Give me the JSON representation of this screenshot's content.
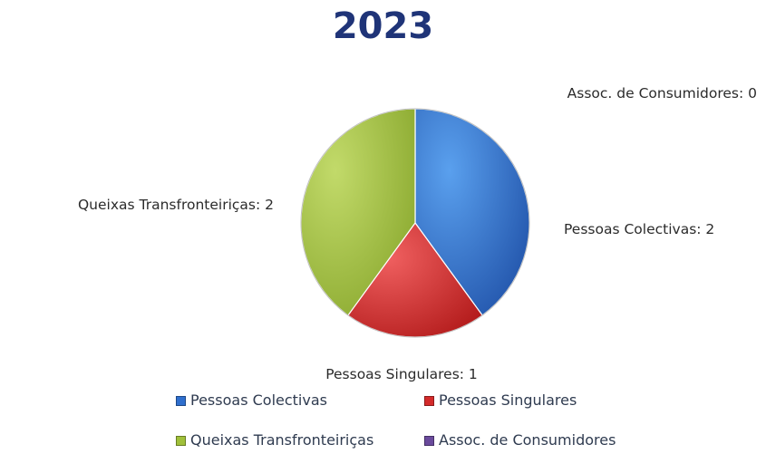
{
  "chart_data": {
    "type": "pie",
    "title": "2023",
    "categories": [
      "Pessoas Colectivas",
      "Pessoas Singulares",
      "Queixas Transfronteiriças",
      "Assoc. de Consumidores"
    ],
    "values": [
      2,
      1,
      2,
      0
    ],
    "data_labels": [
      "Pessoas Colectivas: 2",
      "Pessoas Singulares: 1",
      "Queixas Transfronteiriças: 2",
      "Assoc. de Consumidores: 0"
    ],
    "colors": [
      "#2f6fce",
      "#d42a2a",
      "#a0c03a",
      "#6a4a9c"
    ],
    "legend_position": "bottom"
  }
}
